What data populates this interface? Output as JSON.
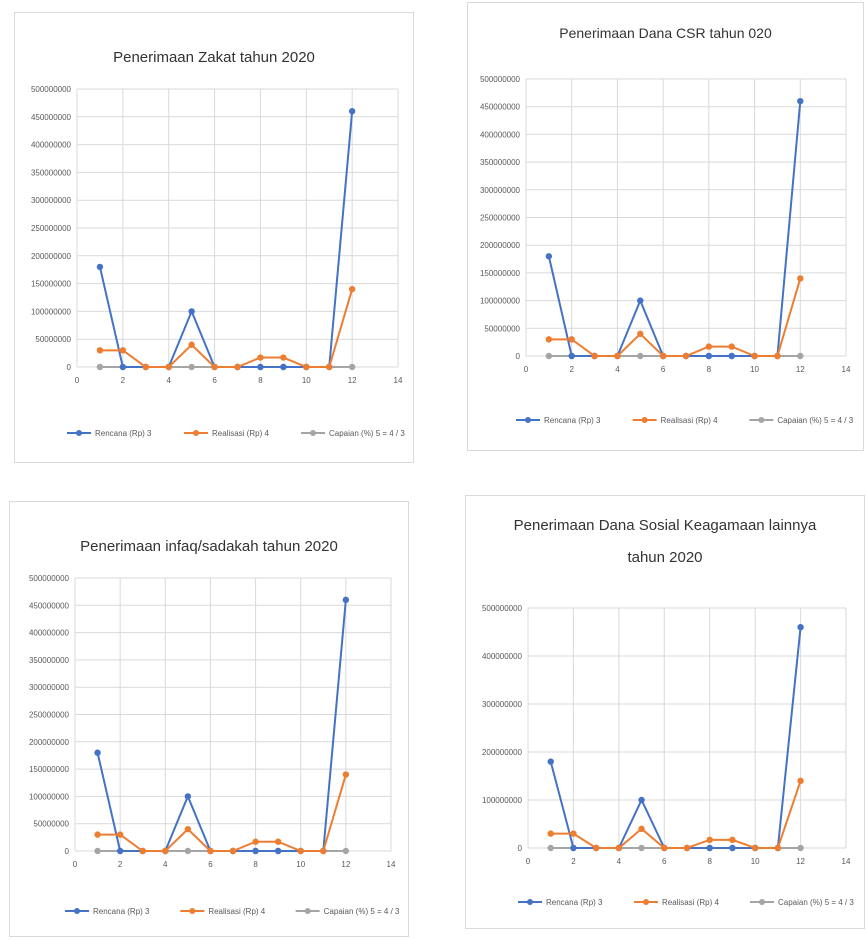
{
  "chart_data": [
    {
      "type": "scatter",
      "title": [
        "Penerimaan Zakat tahun 2020"
      ],
      "x": [
        1,
        2,
        3,
        4,
        5,
        6,
        7,
        8,
        9,
        10,
        11,
        12
      ],
      "series": [
        {
          "name": "Rencana (Rp) 3",
          "color": "#4472c4",
          "values": [
            180000000,
            0,
            0,
            0,
            100000000,
            0,
            0,
            0,
            0,
            0,
            0,
            460000000
          ]
        },
        {
          "name": "Realisasi (Rp) 4",
          "color": "#ed7d31",
          "values": [
            30000000,
            30000000,
            0,
            0,
            40000000,
            0,
            0,
            17000000,
            17000000,
            0,
            0,
            140000000
          ]
        },
        {
          "name": "Capaian (%) 5 = 4 / 3",
          "color": "#a5a5a5",
          "values": [
            0,
            0,
            0,
            0,
            0,
            0,
            0,
            0,
            0,
            0,
            0,
            0
          ]
        }
      ],
      "xlim": [
        0,
        14
      ],
      "ylim": [
        0,
        500000000
      ],
      "yticks": [
        0,
        50000000,
        100000000,
        150000000,
        200000000,
        250000000,
        300000000,
        350000000,
        400000000,
        450000000,
        500000000
      ],
      "yticklabels": [
        "0",
        "50000000",
        "100000000",
        "150000000",
        "200000000",
        "250000000",
        "300000000",
        "350000000",
        "400000000",
        "450000000",
        "500000000"
      ],
      "xticks": [
        0,
        2,
        4,
        6,
        8,
        10,
        12,
        14
      ],
      "xticklabels": [
        "0",
        "2",
        "4",
        "6",
        "8",
        "10",
        "12",
        "14"
      ],
      "grid": true,
      "legend": "bottom"
    },
    {
      "type": "scatter",
      "title": [
        "Penerimaan Dana CSR tahun 020"
      ],
      "x": [
        1,
        2,
        3,
        4,
        5,
        6,
        7,
        8,
        9,
        10,
        11,
        12
      ],
      "series": [
        {
          "name": "Rencana (Rp) 3",
          "color": "#4472c4",
          "values": [
            180000000,
            0,
            0,
            0,
            100000000,
            0,
            0,
            0,
            0,
            0,
            0,
            460000000
          ]
        },
        {
          "name": "Realisasi (Rp) 4",
          "color": "#ed7d31",
          "values": [
            30000000,
            30000000,
            0,
            0,
            40000000,
            0,
            0,
            17000000,
            17000000,
            0,
            0,
            140000000
          ]
        },
        {
          "name": "Capaian (%) 5 = 4 / 3",
          "color": "#a5a5a5",
          "values": [
            0,
            0,
            0,
            0,
            0,
            0,
            0,
            0,
            0,
            0,
            0,
            0
          ]
        }
      ],
      "xlim": [
        0,
        14
      ],
      "ylim": [
        0,
        500000000
      ],
      "yticks": [
        0,
        50000000,
        100000000,
        150000000,
        200000000,
        250000000,
        300000000,
        350000000,
        400000000,
        450000000,
        500000000
      ],
      "yticklabels": [
        "0",
        "50000000",
        "100000000",
        "150000000",
        "200000000",
        "250000000",
        "300000000",
        "350000000",
        "400000000",
        "450000000",
        "500000000"
      ],
      "xticks": [
        0,
        2,
        4,
        6,
        8,
        10,
        12,
        14
      ],
      "xticklabels": [
        "0",
        "2",
        "4",
        "6",
        "8",
        "10",
        "12",
        "14"
      ],
      "grid": true,
      "legend": "bottom"
    },
    {
      "type": "scatter",
      "title": [
        "Penerimaan infaq/sadakah tahun 2020"
      ],
      "x": [
        1,
        2,
        3,
        4,
        5,
        6,
        7,
        8,
        9,
        10,
        11,
        12
      ],
      "series": [
        {
          "name": "Rencana (Rp) 3",
          "color": "#4472c4",
          "values": [
            180000000,
            0,
            0,
            0,
            100000000,
            0,
            0,
            0,
            0,
            0,
            0,
            460000000
          ]
        },
        {
          "name": "Realisasi (Rp) 4",
          "color": "#ed7d31",
          "values": [
            30000000,
            30000000,
            0,
            0,
            40000000,
            0,
            0,
            17000000,
            17000000,
            0,
            0,
            140000000
          ]
        },
        {
          "name": "Capaian (%) 5 = 4 / 3",
          "color": "#a5a5a5",
          "values": [
            0,
            0,
            0,
            0,
            0,
            0,
            0,
            0,
            0,
            0,
            0,
            0
          ]
        }
      ],
      "xlim": [
        0,
        14
      ],
      "ylim": [
        0,
        500000000
      ],
      "yticks": [
        0,
        50000000,
        100000000,
        150000000,
        200000000,
        250000000,
        300000000,
        350000000,
        400000000,
        450000000,
        500000000
      ],
      "yticklabels": [
        "0",
        "50000000",
        "100000000",
        "150000000",
        "200000000",
        "250000000",
        "300000000",
        "350000000",
        "400000000",
        "450000000",
        "500000000"
      ],
      "xticks": [
        0,
        2,
        4,
        6,
        8,
        10,
        12,
        14
      ],
      "xticklabels": [
        "0",
        "2",
        "4",
        "6",
        "8",
        "10",
        "12",
        "14"
      ],
      "grid": true,
      "legend": "bottom"
    },
    {
      "type": "scatter",
      "title": [
        "Penerimaan Dana Sosial Keagamaan lainnya",
        "tahun 2020"
      ],
      "x": [
        1,
        2,
        3,
        4,
        5,
        6,
        7,
        8,
        9,
        10,
        11,
        12
      ],
      "series": [
        {
          "name": "Rencana (Rp) 3",
          "color": "#4472c4",
          "values": [
            180000000,
            0,
            0,
            0,
            100000000,
            0,
            0,
            0,
            0,
            0,
            0,
            460000000
          ]
        },
        {
          "name": "Realisasi (Rp) 4",
          "color": "#ed7d31",
          "values": [
            30000000,
            30000000,
            0,
            0,
            40000000,
            0,
            0,
            17000000,
            17000000,
            0,
            0,
            140000000
          ]
        },
        {
          "name": "Capaian (%) 5 = 4 / 3",
          "color": "#a5a5a5",
          "values": [
            0,
            0,
            0,
            0,
            0,
            0,
            0,
            0,
            0,
            0,
            0,
            0
          ]
        }
      ],
      "xlim": [
        0,
        14
      ],
      "ylim": [
        0,
        500000000
      ],
      "yticks": [
        0,
        100000000,
        200000000,
        300000000,
        400000000,
        500000000
      ],
      "yticklabels": [
        "0",
        "100000000",
        "200000000",
        "300000000",
        "400000000",
        "500000000"
      ],
      "xticks": [
        0,
        2,
        4,
        6,
        8,
        10,
        12,
        14
      ],
      "xticklabels": [
        "0",
        "2",
        "4",
        "6",
        "8",
        "10",
        "12",
        "14"
      ],
      "grid": true,
      "legend": "bottom"
    }
  ]
}
